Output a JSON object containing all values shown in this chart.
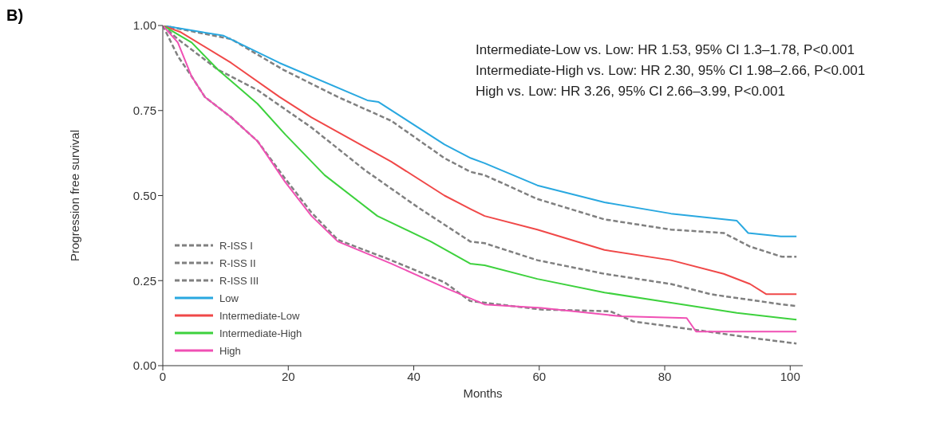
{
  "chart_data": {
    "type": "line",
    "title": "B)",
    "xlabel": "Months",
    "ylabel": "Progression free survival",
    "annotations": [
      "Intermediate-Low vs. Low: HR 1.53, 95% CI 1.3–1.78, P<0.001",
      "Intermediate-High vs. Low: HR 2.30, 95% CI 1.98–2.66, P<0.001",
      "High vs. Low: HR 3.26, 95% CI 2.66–3.99, P<0.001"
    ],
    "xlim": [
      0,
      102
    ],
    "xticks": [
      0,
      20,
      40,
      60,
      80,
      100
    ],
    "ylim": [
      0,
      1
    ],
    "yticks": [
      {
        "value": 0,
        "label": "0.00"
      },
      {
        "value": 0.25,
        "label": "0.25"
      },
      {
        "value": 0.5,
        "label": "0.50"
      },
      {
        "value": 0.75,
        "label": "0.75"
      },
      {
        "value": 1,
        "label": "1.00"
      }
    ],
    "grid": false,
    "legend": "bottom left",
    "marker": "none",
    "series": [
      {
        "name": "R-ISS I",
        "color": "#808080",
        "line_style": "dashed",
        "x": [
          0,
          10.9,
          19.2,
          27.9,
          36.4,
          44.9,
          49,
          51.3,
          59.7,
          70.4,
          81,
          89.4,
          93.6,
          98.7,
          101
        ],
        "values": [
          1,
          0.96,
          0.87,
          0.79,
          0.72,
          0.61,
          0.57,
          0.56,
          0.49,
          0.43,
          0.4,
          0.39,
          0.35,
          0.32,
          0.32
        ]
      },
      {
        "name": "R-ISS II",
        "color": "#808080",
        "line_style": "dashed",
        "x": [
          0,
          2.4,
          8.8,
          15.1,
          23.7,
          32.2,
          40.7,
          49,
          51.3,
          59.7,
          70.4,
          81,
          87.3,
          98.7,
          101
        ],
        "values": [
          1,
          0.96,
          0.87,
          0.81,
          0.7,
          0.575,
          0.465,
          0.365,
          0.36,
          0.31,
          0.27,
          0.24,
          0.21,
          0.18,
          0.175
        ]
      },
      {
        "name": "R-ISS III",
        "color": "#808080",
        "line_style": "dashed",
        "x": [
          0,
          2.4,
          4.6,
          6.7,
          10.9,
          15.1,
          19.5,
          23.7,
          27.9,
          36.4,
          44.9,
          49,
          51.3,
          60.3,
          71.3,
          75,
          85,
          94.6,
          101
        ],
        "values": [
          1,
          0.91,
          0.85,
          0.79,
          0.73,
          0.66,
          0.55,
          0.45,
          0.37,
          0.31,
          0.245,
          0.19,
          0.185,
          0.165,
          0.16,
          0.13,
          0.105,
          0.08,
          0.065
        ]
      },
      {
        "name": "Low",
        "color": "#29a8e0",
        "line_style": "solid",
        "x": [
          0,
          9.7,
          18.6,
          32.6,
          34.4,
          44.9,
          49.1,
          51.3,
          59.7,
          70.4,
          81,
          91.5,
          93.3,
          98.5,
          101
        ],
        "values": [
          1,
          0.97,
          0.89,
          0.78,
          0.775,
          0.65,
          0.61,
          0.595,
          0.53,
          0.48,
          0.447,
          0.426,
          0.39,
          0.38,
          0.38
        ]
      },
      {
        "name": "Intermediate-Low",
        "color": "#f04848",
        "line_style": "solid",
        "x": [
          0,
          2.9,
          10.9,
          18.6,
          23.7,
          36.4,
          44.9,
          49.1,
          51.3,
          59.7,
          70.4,
          81,
          89.4,
          93.6,
          96.2,
          101
        ],
        "values": [
          1,
          0.98,
          0.89,
          0.79,
          0.73,
          0.6,
          0.5,
          0.46,
          0.44,
          0.4,
          0.34,
          0.31,
          0.27,
          0.24,
          0.21,
          0.21
        ]
      },
      {
        "name": "Intermediate-High",
        "color": "#3dd13d",
        "line_style": "solid",
        "x": [
          0,
          4.6,
          8.8,
          15.1,
          19.5,
          25.8,
          34.2,
          42.7,
          49,
          51.3,
          59.7,
          70.4,
          81,
          91.5,
          98.7,
          101
        ],
        "values": [
          1,
          0.95,
          0.87,
          0.77,
          0.68,
          0.56,
          0.44,
          0.365,
          0.3,
          0.295,
          0.255,
          0.215,
          0.185,
          0.155,
          0.14,
          0.135
        ]
      },
      {
        "name": "High",
        "color": "#f050b4",
        "line_style": "solid",
        "x": [
          0,
          2.4,
          4.6,
          6.7,
          10.9,
          15.1,
          19.5,
          23.7,
          27.9,
          36.4,
          44.9,
          51.3,
          60.3,
          73,
          83.5,
          85,
          101
        ],
        "values": [
          1,
          0.95,
          0.85,
          0.79,
          0.73,
          0.66,
          0.54,
          0.44,
          0.365,
          0.3,
          0.23,
          0.18,
          0.17,
          0.145,
          0.14,
          0.1,
          0.1
        ]
      }
    ]
  }
}
